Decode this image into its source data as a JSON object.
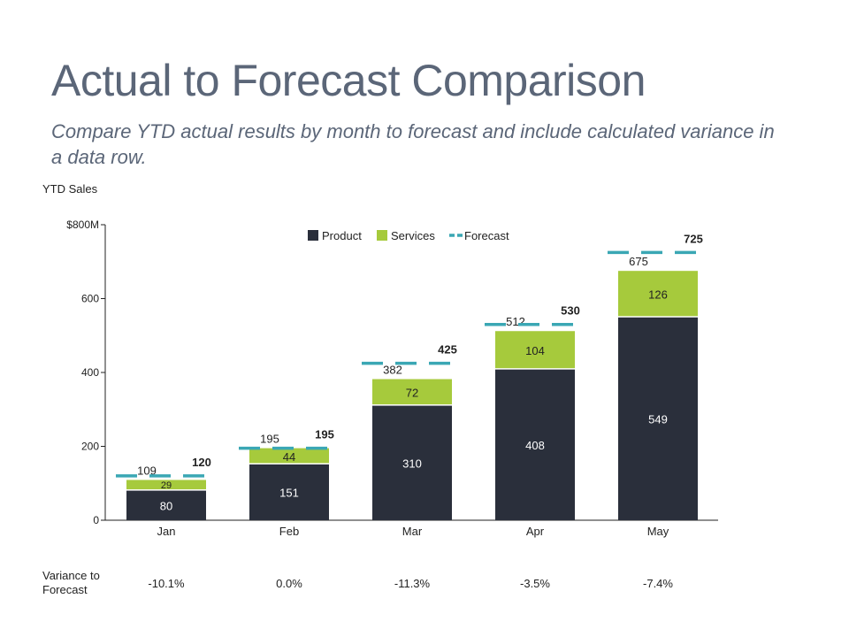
{
  "title": "Actual to Forecast Comparison",
  "subtitle": "Compare YTD actual results by month to forecast and include calculated variance in a data row.",
  "colors": {
    "product": "#2a2f3b",
    "services": "#a6ca3c",
    "forecast": "#3aa7b4"
  },
  "chart_data": {
    "type": "bar",
    "stacked": true,
    "ylabel": "YTD Sales",
    "ylim": [
      0,
      800
    ],
    "yticks": [
      0,
      200,
      400,
      600,
      800
    ],
    "ytick_labels": [
      "0",
      "200",
      "400",
      "600",
      "$800M"
    ],
    "categories": [
      "Jan",
      "Feb",
      "Mar",
      "Apr",
      "May"
    ],
    "series": [
      {
        "name": "Product",
        "values": [
          80,
          151,
          310,
          408,
          549
        ]
      },
      {
        "name": "Services",
        "values": [
          29,
          44,
          72,
          104,
          126
        ]
      }
    ],
    "totals": [
      109,
      195,
      382,
      512,
      675
    ],
    "forecast": {
      "name": "Forecast",
      "values": [
        120,
        195,
        425,
        530,
        725
      ]
    },
    "legend": [
      "Product",
      "Services",
      "Forecast"
    ],
    "legend_position": "top"
  },
  "variance": {
    "label": "Variance to Forecast",
    "values": [
      "-10.1%",
      "0.0%",
      "-11.3%",
      "-3.5%",
      "-7.4%"
    ]
  }
}
